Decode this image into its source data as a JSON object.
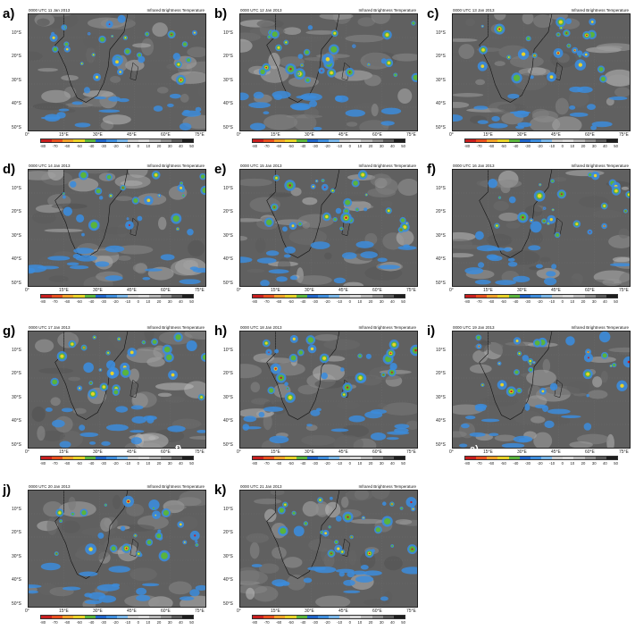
{
  "panels": [
    {
      "label": "a)",
      "date": "0000 UTC 11 Jan 2013"
    },
    {
      "label": "b)",
      "date": "0000 UTC 12 Jan 2013"
    },
    {
      "label": "c)",
      "date": "0000 UTC 13 Jan 2013"
    },
    {
      "label": "d)",
      "date": "0000 UTC 14 Jan 2013"
    },
    {
      "label": "e)",
      "date": "0000 UTC 15 Jan 2013"
    },
    {
      "label": "f)",
      "date": "0000 UTC 16 Jan 2013"
    },
    {
      "label": "g)",
      "date": "0000 UTC 17 Jan 2013"
    },
    {
      "label": "h)",
      "date": "0000 UTC 18 Jan 2013"
    },
    {
      "label": "i)",
      "date": "0000 UTC 19 Jan 2013"
    },
    {
      "label": "j)",
      "date": "0000 UTC 20 Jan 2013"
    },
    {
      "label": "k)",
      "date": "0000 UTC 21 Jan 2013"
    }
  ],
  "map_title": "Infrared Brightness Temperature",
  "lat_labels": [
    "10°S",
    "20°S",
    "30°S",
    "40°S",
    "50°S"
  ],
  "lon_labels": [
    "0°",
    "15°E",
    "30°E",
    "45°E",
    "60°E",
    "75°E"
  ],
  "colorbar": {
    "ticks": [
      "-80",
      "-70",
      "-60",
      "-50",
      "-40",
      "-30",
      "-20",
      "-10",
      "0",
      "10",
      "20",
      "30",
      "40",
      "50"
    ],
    "colors": [
      "#c81e1e",
      "#e8501e",
      "#f0a028",
      "#e8d228",
      "#5ab43c",
      "#1e64c8",
      "#3c8cdc",
      "#78b4e6",
      "#c8c8c8",
      "#d7d7d7",
      "#b4b4b4",
      "#8c8c8c",
      "#5a5a5a",
      "#1e1e1e"
    ]
  },
  "stray_labels": {
    "g": "f)",
    "i": "a)"
  }
}
